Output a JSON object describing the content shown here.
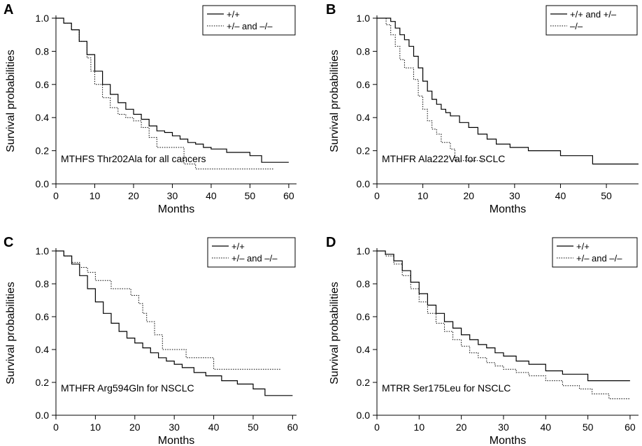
{
  "figure": {
    "ylabel": "Survival probabilities",
    "xlabel": "Months"
  },
  "chart_data": [
    {
      "panel": "A",
      "type": "line",
      "step": true,
      "annotation": "MTHFS Thr202Ala for all cancers",
      "xlabel": "Months",
      "ylabel": "Survival probabilities",
      "xlim": [
        0,
        62
      ],
      "ylim": [
        0,
        1.0
      ],
      "xticks": [
        0,
        10,
        20,
        30,
        40,
        50,
        60
      ],
      "yticks": [
        "0.0",
        "0.2",
        "0.4",
        "0.6",
        "0.8",
        "1.0"
      ],
      "legend": "top-right",
      "series": [
        {
          "name": "+/+",
          "style": "solid",
          "x": [
            0,
            2,
            4,
            6,
            8,
            10,
            12,
            14,
            16,
            18,
            20,
            22,
            24,
            26,
            28,
            30,
            32,
            34,
            36,
            38,
            40,
            44,
            50,
            53,
            60
          ],
          "y": [
            1.0,
            0.97,
            0.93,
            0.86,
            0.78,
            0.68,
            0.6,
            0.54,
            0.49,
            0.45,
            0.42,
            0.39,
            0.35,
            0.32,
            0.31,
            0.29,
            0.27,
            0.25,
            0.24,
            0.22,
            0.21,
            0.19,
            0.17,
            0.13,
            0.13
          ]
        },
        {
          "name": "+/– and –/–",
          "style": "dotted",
          "x": [
            0,
            2,
            4,
            6,
            8,
            9,
            10,
            12,
            14,
            16,
            18,
            20,
            22,
            24,
            26,
            29,
            33,
            36,
            42,
            56
          ],
          "y": [
            1.0,
            0.97,
            0.93,
            0.86,
            0.76,
            0.68,
            0.6,
            0.52,
            0.46,
            0.42,
            0.4,
            0.38,
            0.34,
            0.28,
            0.22,
            0.22,
            0.12,
            0.09,
            0.09,
            0.09
          ]
        }
      ]
    },
    {
      "panel": "B",
      "type": "line",
      "step": true,
      "annotation": "MTHFR Ala222Val for SCLC",
      "xlabel": "Months",
      "ylabel": "Survival probabilities",
      "xlim": [
        0,
        57
      ],
      "ylim": [
        0,
        1.0
      ],
      "xticks": [
        0,
        10,
        20,
        30,
        40,
        50
      ],
      "yticks": [
        "0.0",
        "0.2",
        "0.4",
        "0.6",
        "0.8",
        "1.0"
      ],
      "legend": "top-right",
      "series": [
        {
          "name": "+/+ and +/–",
          "style": "solid",
          "x": [
            0,
            3,
            4,
            5,
            6,
            7,
            8,
            9,
            10,
            11,
            12,
            13,
            14,
            15,
            16,
            18,
            20,
            22,
            24,
            26,
            29,
            33,
            40,
            47,
            57
          ],
          "y": [
            1.0,
            0.98,
            0.94,
            0.9,
            0.87,
            0.83,
            0.77,
            0.7,
            0.62,
            0.56,
            0.51,
            0.48,
            0.45,
            0.43,
            0.41,
            0.37,
            0.34,
            0.3,
            0.27,
            0.24,
            0.22,
            0.2,
            0.17,
            0.12,
            0.12
          ]
        },
        {
          "name": "–/–",
          "style": "dotted",
          "x": [
            0,
            2,
            3,
            4,
            5,
            6,
            8,
            9,
            10,
            11,
            12,
            13,
            14,
            16,
            17,
            18,
            23
          ],
          "y": [
            1.0,
            0.96,
            0.9,
            0.83,
            0.75,
            0.7,
            0.63,
            0.53,
            0.45,
            0.38,
            0.33,
            0.3,
            0.25,
            0.21,
            0.14,
            0.14,
            0.14
          ]
        }
      ]
    },
    {
      "panel": "C",
      "type": "line",
      "step": true,
      "annotation": "MTHFR Arg594Gln for NSCLC",
      "xlabel": "Months",
      "ylabel": "Survival probabilities",
      "xlim": [
        0,
        61
      ],
      "ylim": [
        0,
        1.0
      ],
      "xticks": [
        0,
        10,
        20,
        30,
        40,
        50,
        60
      ],
      "yticks": [
        "0.0",
        "0.2",
        "0.4",
        "0.6",
        "0.8",
        "1.0"
      ],
      "legend": "top-right",
      "series": [
        {
          "name": "+/+",
          "style": "solid",
          "x": [
            0,
            2,
            4,
            6,
            8,
            10,
            12,
            14,
            16,
            18,
            20,
            22,
            24,
            26,
            28,
            30,
            32,
            35,
            38,
            42,
            46,
            50,
            53,
            60
          ],
          "y": [
            1.0,
            0.97,
            0.92,
            0.85,
            0.77,
            0.69,
            0.62,
            0.56,
            0.51,
            0.47,
            0.44,
            0.41,
            0.38,
            0.35,
            0.33,
            0.31,
            0.29,
            0.26,
            0.24,
            0.21,
            0.19,
            0.16,
            0.12,
            0.12
          ]
        },
        {
          "name": "+/– and –/–",
          "style": "dotted",
          "x": [
            0,
            2,
            4,
            6,
            8,
            10,
            14,
            17,
            19,
            21,
            22,
            23,
            25,
            27,
            33,
            40,
            57
          ],
          "y": [
            1.0,
            0.97,
            0.93,
            0.9,
            0.87,
            0.82,
            0.77,
            0.77,
            0.73,
            0.68,
            0.62,
            0.57,
            0.49,
            0.4,
            0.35,
            0.28,
            0.28
          ]
        }
      ]
    },
    {
      "panel": "D",
      "type": "line",
      "step": true,
      "annotation": "MTRR Ser175Leu for NSCLC",
      "xlabel": "Months",
      "ylabel": "Survival probabilities",
      "xlim": [
        0,
        62
      ],
      "ylim": [
        0,
        1.0
      ],
      "xticks": [
        0,
        10,
        20,
        30,
        40,
        50,
        60
      ],
      "yticks": [
        "0.0",
        "0.2",
        "0.4",
        "0.6",
        "0.8",
        "1.0"
      ],
      "legend": "top-right",
      "series": [
        {
          "name": "+/+",
          "style": "solid",
          "x": [
            0,
            2,
            4,
            6,
            8,
            10,
            12,
            14,
            16,
            18,
            20,
            22,
            24,
            26,
            28,
            30,
            33,
            36,
            40,
            44,
            50,
            60
          ],
          "y": [
            1.0,
            0.98,
            0.94,
            0.88,
            0.81,
            0.74,
            0.67,
            0.62,
            0.57,
            0.53,
            0.49,
            0.46,
            0.43,
            0.41,
            0.38,
            0.36,
            0.33,
            0.31,
            0.27,
            0.25,
            0.21,
            0.21
          ]
        },
        {
          "name": "+/– and –/–",
          "style": "dotted",
          "x": [
            0,
            2,
            4,
            6,
            8,
            10,
            12,
            14,
            16,
            18,
            20,
            22,
            24,
            26,
            28,
            30,
            33,
            36,
            40,
            44,
            48,
            51,
            55,
            60
          ],
          "y": [
            1.0,
            0.97,
            0.92,
            0.85,
            0.77,
            0.69,
            0.62,
            0.56,
            0.51,
            0.46,
            0.42,
            0.38,
            0.35,
            0.32,
            0.3,
            0.28,
            0.26,
            0.24,
            0.21,
            0.18,
            0.16,
            0.13,
            0.1,
            0.1
          ]
        }
      ]
    }
  ]
}
